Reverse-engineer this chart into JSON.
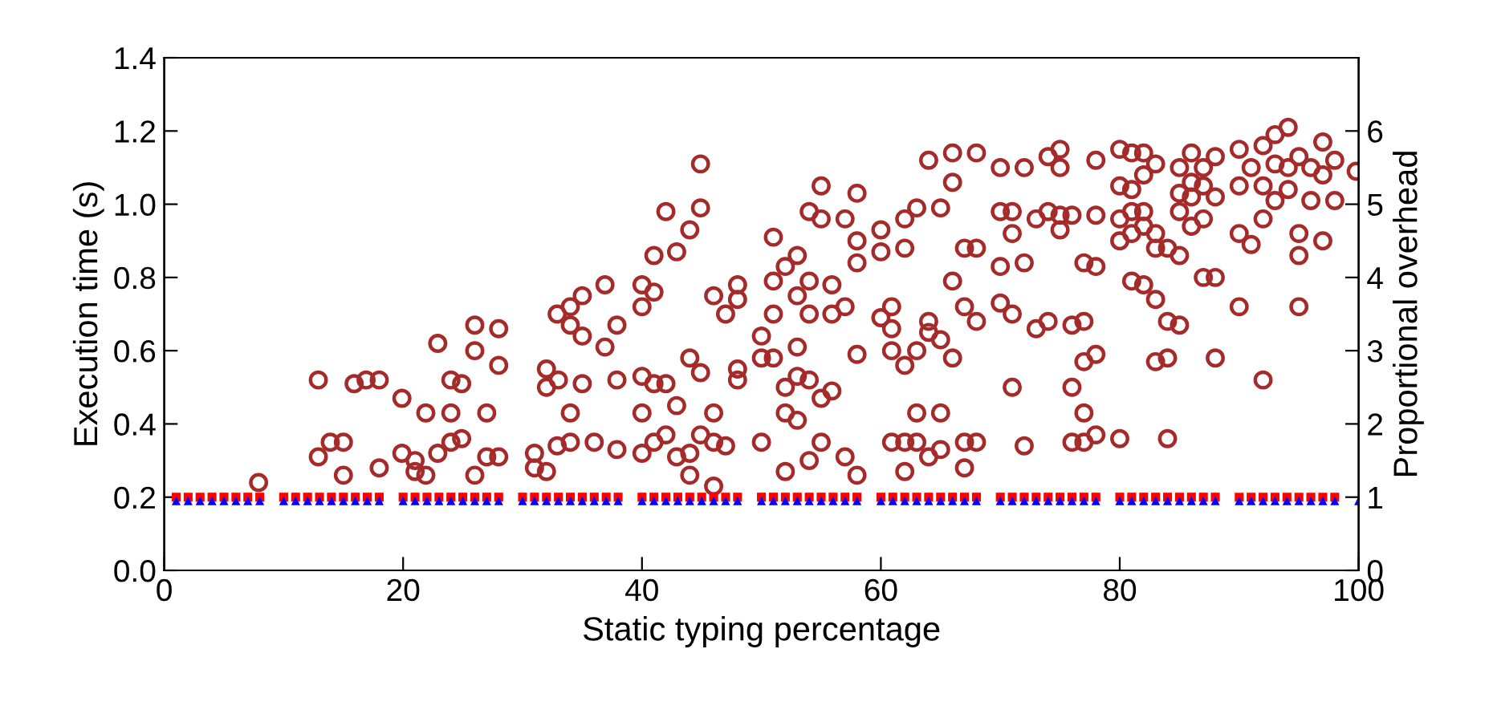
{
  "chart_data": {
    "type": "scatter",
    "xlabel": "Static typing percentage",
    "ylabel": "Execution time (s)",
    "y2label": "Proportional overhead",
    "xlim": [
      0,
      100
    ],
    "xticks": [
      0,
      20,
      40,
      60,
      80,
      100
    ],
    "ylim": [
      0,
      1.4
    ],
    "yticks": [
      {
        "value": 0,
        "label": "0.0"
      },
      0.2,
      0.4,
      0.6,
      0.8,
      {
        "value": 1,
        "label": "1.0"
      },
      1.2,
      1.4
    ],
    "y2lim": [
      0,
      7
    ],
    "y2ticks": [
      0,
      1,
      2,
      3,
      4,
      5,
      6
    ],
    "grid": false,
    "legend": false,
    "series": [
      {
        "color": "#a52a2a",
        "marker": "circle",
        "x": [
          7.9,
          12.9,
          12.9,
          13.9,
          15.0,
          15.0,
          15.9,
          16.9,
          18.0,
          18.0,
          19.9,
          19.9,
          21.0,
          21.0,
          21.9,
          21.9,
          22.9,
          22.9,
          24.0,
          24.0,
          24.0,
          24.9,
          24.9,
          26.0,
          26.0,
          26.0,
          27.0,
          27.0,
          28.0,
          28.0,
          28.0,
          31.0,
          31.0,
          32.0,
          32.0,
          32.0,
          33.0,
          32.9,
          34.0,
          34.0,
          34.0,
          35.0,
          35.0,
          35.0,
          32.9,
          34.0,
          36.0,
          36.9,
          36.9,
          37.9,
          37.9,
          37.9,
          40.0,
          40.0,
          40.0,
          40.0,
          40.0,
          41.0,
          41.0,
          41.0,
          41.0,
          42.0,
          42.0,
          42.0,
          42.9,
          42.9,
          42.9,
          44.0,
          44.0,
          44.0,
          44.0,
          44.9,
          44.9,
          44.9,
          44.9,
          46.0,
          46.0,
          46.0,
          46.0,
          47.0,
          47.0,
          48.0,
          48.0,
          48.0,
          48.0,
          50.0,
          50.0,
          50.0,
          51.0,
          51.0,
          51.0,
          51.0,
          52.0,
          52.0,
          52.0,
          52.0,
          53.0,
          53.0,
          53.0,
          53.0,
          53.0,
          54.0,
          54.0,
          54.0,
          54.0,
          54.0,
          55.0,
          55.0,
          55.0,
          55.0,
          55.9,
          55.9,
          55.9,
          57.0,
          57.0,
          57.0,
          58.0,
          58.0,
          58.0,
          58.0,
          58.0,
          60.0,
          60.0,
          60.0,
          60.9,
          60.9,
          60.9,
          60.9,
          62.0,
          62.0,
          62.0,
          62.0,
          62.0,
          63.0,
          63.0,
          63.0,
          63.0,
          64.0,
          64.0,
          64.0,
          64.0,
          65.0,
          65.0,
          65.0,
          65.0,
          66.0,
          66.0,
          66.0,
          66.0,
          67.0,
          67.0,
          67.0,
          67.0,
          68.0,
          68.0,
          68.0,
          68.0,
          70.0,
          70.0,
          70.0,
          70.0,
          71.0,
          71.0,
          71.0,
          71.0,
          72.0,
          72.0,
          72.0,
          73.0,
          73.0,
          74.0,
          74.0,
          74.0,
          75.0,
          75.0,
          75.0,
          75.0,
          76.0,
          76.0,
          76.0,
          76.0,
          77.0,
          77.0,
          77.0,
          77.0,
          77.0,
          78.0,
          78.0,
          78.0,
          78.0,
          78.0,
          80.0,
          80.0,
          80.0,
          80.0,
          80.0,
          81.0,
          81.0,
          81.0,
          81.0,
          81.0,
          82.0,
          82.0,
          82.0,
          82.0,
          82.0,
          83.0,
          83.0,
          83.0,
          83.0,
          83.0,
          84.0,
          84.0,
          84.0,
          84.0,
          85.0,
          85.0,
          85.0,
          85.0,
          85.0,
          86.0,
          86.0,
          86.0,
          86.0,
          87.0,
          87.0,
          87.0,
          87.0,
          88.0,
          88.0,
          88.0,
          88.0,
          90.0,
          90.0,
          90.0,
          90.0,
          91.0,
          91.0,
          92.0,
          92.0,
          92.0,
          92.0,
          93.0,
          93.0,
          93.0,
          94.1,
          94.1,
          94.1,
          95.0,
          95.0,
          95.0,
          95.0,
          96.0,
          96.0,
          97.0,
          97.0,
          97.0,
          98.0,
          98.0,
          99.8
        ],
        "values": [
          0.24,
          0.52,
          0.31,
          0.35,
          0.35,
          0.26,
          0.51,
          0.52,
          0.52,
          0.28,
          0.47,
          0.32,
          0.3,
          0.27,
          0.43,
          0.26,
          0.62,
          0.32,
          0.52,
          0.43,
          0.35,
          0.51,
          0.36,
          0.67,
          0.6,
          0.26,
          0.43,
          0.31,
          0.66,
          0.56,
          0.31,
          0.32,
          0.28,
          0.55,
          0.5,
          0.27,
          0.52,
          0.7,
          0.72,
          0.67,
          0.43,
          0.75,
          0.64,
          0.51,
          0.34,
          0.35,
          0.35,
          0.78,
          0.61,
          0.67,
          0.52,
          0.33,
          0.78,
          0.72,
          0.53,
          0.43,
          0.32,
          0.86,
          0.76,
          0.51,
          0.35,
          0.98,
          0.51,
          0.37,
          0.87,
          0.45,
          0.31,
          0.93,
          0.58,
          0.32,
          0.26,
          1.11,
          0.99,
          0.54,
          0.37,
          0.75,
          0.43,
          0.35,
          0.23,
          0.7,
          0.34,
          0.78,
          0.74,
          0.55,
          0.52,
          0.64,
          0.58,
          0.35,
          0.91,
          0.79,
          0.7,
          0.58,
          0.83,
          0.5,
          0.43,
          0.27,
          0.86,
          0.75,
          0.61,
          0.53,
          0.41,
          0.98,
          0.79,
          0.7,
          0.52,
          0.3,
          1.05,
          0.96,
          0.47,
          0.35,
          0.78,
          0.7,
          0.49,
          0.96,
          0.72,
          0.31,
          1.03,
          0.9,
          0.84,
          0.59,
          0.26,
          0.93,
          0.87,
          0.69,
          0.72,
          0.66,
          0.6,
          0.35,
          0.96,
          0.88,
          0.56,
          0.35,
          0.27,
          0.99,
          0.6,
          0.43,
          0.35,
          1.12,
          0.68,
          0.65,
          0.31,
          0.99,
          0.63,
          0.43,
          0.33,
          1.14,
          1.06,
          0.79,
          0.58,
          0.88,
          0.72,
          0.35,
          0.28,
          1.14,
          0.88,
          0.68,
          0.35,
          1.1,
          0.98,
          0.83,
          0.73,
          0.98,
          0.92,
          0.7,
          0.5,
          1.1,
          0.84,
          0.34,
          0.96,
          0.66,
          1.13,
          0.98,
          0.68,
          1.15,
          1.1,
          0.97,
          0.93,
          0.97,
          0.67,
          0.5,
          0.35,
          0.84,
          0.68,
          0.57,
          0.43,
          0.35,
          1.12,
          0.97,
          0.83,
          0.59,
          0.37,
          1.15,
          1.05,
          0.96,
          0.9,
          0.36,
          1.14,
          1.04,
          0.98,
          0.92,
          0.79,
          1.14,
          1.08,
          0.98,
          0.94,
          0.78,
          1.11,
          0.92,
          0.88,
          0.74,
          0.57,
          0.88,
          0.68,
          0.58,
          0.36,
          1.1,
          1.03,
          0.98,
          0.86,
          0.67,
          1.14,
          1.06,
          1.02,
          0.94,
          1.1,
          1.05,
          0.96,
          0.8,
          1.13,
          1.02,
          0.8,
          0.58,
          1.15,
          1.05,
          0.92,
          0.72,
          1.1,
          0.89,
          1.16,
          1.05,
          0.96,
          0.52,
          1.19,
          1.11,
          1.01,
          1.21,
          1.1,
          1.04,
          1.13,
          0.92,
          0.86,
          0.72,
          1.1,
          1.01,
          1.17,
          1.08,
          0.9,
          1.12,
          1.01,
          1.09
        ]
      },
      {
        "color": "#0000ff",
        "marker": "triangle",
        "x": [
          1,
          2,
          3,
          4,
          5,
          6,
          7,
          8,
          10,
          11,
          12,
          13,
          14,
          15,
          16,
          17,
          18,
          20,
          21,
          22,
          23,
          24,
          25,
          26,
          27,
          28,
          30,
          31,
          32,
          33,
          34,
          35,
          36,
          37,
          38,
          40,
          41,
          42,
          43,
          44,
          45,
          46,
          47,
          48,
          50,
          51,
          52,
          53,
          54,
          55,
          56,
          57,
          58,
          60,
          61,
          62,
          63,
          64,
          65,
          66,
          67,
          68,
          70,
          71,
          72,
          73,
          74,
          75,
          76,
          77,
          78,
          80,
          81,
          82,
          83,
          84,
          85,
          86,
          87,
          88,
          90,
          91,
          92,
          93,
          94,
          95,
          96,
          97,
          98,
          100
        ],
        "values": [
          0.19,
          0.19,
          0.19,
          0.19,
          0.19,
          0.19,
          0.19,
          0.19,
          0.19,
          0.19,
          0.19,
          0.19,
          0.19,
          0.19,
          0.19,
          0.19,
          0.19,
          0.19,
          0.19,
          0.19,
          0.19,
          0.19,
          0.19,
          0.19,
          0.19,
          0.19,
          0.19,
          0.19,
          0.19,
          0.19,
          0.19,
          0.19,
          0.19,
          0.19,
          0.19,
          0.19,
          0.19,
          0.19,
          0.19,
          0.19,
          0.19,
          0.19,
          0.19,
          0.19,
          0.19,
          0.19,
          0.19,
          0.19,
          0.19,
          0.19,
          0.19,
          0.19,
          0.19,
          0.19,
          0.19,
          0.19,
          0.19,
          0.19,
          0.19,
          0.19,
          0.19,
          0.19,
          0.19,
          0.19,
          0.19,
          0.19,
          0.19,
          0.19,
          0.19,
          0.19,
          0.19,
          0.19,
          0.19,
          0.19,
          0.19,
          0.19,
          0.19,
          0.19,
          0.19,
          0.19,
          0.19,
          0.19,
          0.19,
          0.19,
          0.19,
          0.19,
          0.19,
          0.19,
          0.19,
          0.19
        ]
      },
      {
        "color": "#ff0000",
        "marker": "square",
        "x": [
          1,
          2,
          3,
          4,
          5,
          6,
          7,
          8,
          10,
          11,
          12,
          13,
          14,
          15,
          16,
          17,
          18,
          20,
          21,
          22,
          23,
          24,
          25,
          26,
          27,
          28,
          30,
          31,
          32,
          33,
          34,
          35,
          36,
          37,
          38,
          40,
          41,
          42,
          43,
          44,
          45,
          46,
          47,
          48,
          50,
          51,
          52,
          53,
          54,
          55,
          56,
          57,
          58,
          60,
          61,
          62,
          63,
          64,
          65,
          66,
          67,
          68,
          70,
          71,
          72,
          73,
          74,
          75,
          76,
          77,
          78,
          80,
          81,
          82,
          83,
          84,
          85,
          86,
          87,
          88,
          90,
          91,
          92,
          93,
          94,
          95,
          96,
          97,
          98
        ],
        "values": [
          0.2,
          0.2,
          0.2,
          0.2,
          0.2,
          0.2,
          0.2,
          0.2,
          0.2,
          0.2,
          0.2,
          0.2,
          0.2,
          0.2,
          0.2,
          0.2,
          0.2,
          0.2,
          0.2,
          0.2,
          0.2,
          0.2,
          0.2,
          0.2,
          0.2,
          0.2,
          0.2,
          0.2,
          0.2,
          0.2,
          0.2,
          0.2,
          0.2,
          0.2,
          0.2,
          0.2,
          0.2,
          0.2,
          0.2,
          0.2,
          0.2,
          0.2,
          0.2,
          0.2,
          0.2,
          0.2,
          0.2,
          0.2,
          0.2,
          0.2,
          0.2,
          0.2,
          0.2,
          0.2,
          0.2,
          0.2,
          0.2,
          0.2,
          0.2,
          0.2,
          0.2,
          0.2,
          0.2,
          0.2,
          0.2,
          0.2,
          0.2,
          0.2,
          0.2,
          0.2,
          0.2,
          0.2,
          0.2,
          0.2,
          0.2,
          0.2,
          0.2,
          0.2,
          0.2,
          0.2,
          0.2,
          0.2,
          0.2,
          0.2,
          0.2,
          0.2,
          0.2,
          0.2,
          0.2
        ]
      }
    ]
  }
}
